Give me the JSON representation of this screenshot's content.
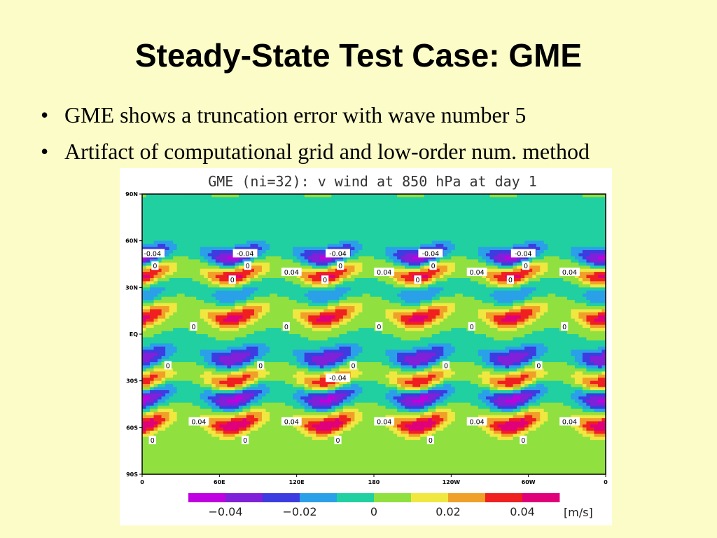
{
  "slide": {
    "title": "Steady-State Test Case: GME",
    "bullets": [
      "GME shows a truncation error with wave number 5",
      "Artifact of computational grid and low-order num. method"
    ]
  },
  "chart_data": {
    "type": "heatmap",
    "title": "GME (ni=32): v wind at 850 hPa at day 1",
    "x_ticks": [
      "0",
      "60E",
      "120E",
      "180",
      "120W",
      "60W",
      "0"
    ],
    "y_ticks": [
      "90N",
      "60N",
      "30N",
      "EQ",
      "30S",
      "60S",
      "90S"
    ],
    "xlim": [
      0,
      360
    ],
    "ylim": [
      -90,
      90
    ],
    "zonal_wave_number": 5,
    "colorbar": {
      "ticks": [
        "−0.04",
        "−0.02",
        "0",
        "0.02",
        "0.04"
      ],
      "unit": "[m/s]",
      "colors": [
        "#c000e0",
        "#8020d8",
        "#3c3ce0",
        "#2aa0e8",
        "#20d0a0",
        "#90e040",
        "#f0e840",
        "#f0a028",
        "#f02020",
        "#e0007a"
      ]
    },
    "bands": [
      {
        "lat": 52,
        "amplitude": -0.045
      },
      {
        "lat": 40,
        "amplitude": 0.045
      },
      {
        "lat": 28,
        "amplitude": -0.02
      },
      {
        "lat": 13,
        "amplitude": 0.045
      },
      {
        "lat": -13,
        "amplitude": -0.04
      },
      {
        "lat": -28,
        "amplitude": 0.04
      },
      {
        "lat": -39,
        "amplitude": -0.045
      },
      {
        "lat": -56,
        "amplitude": 0.05
      }
    ],
    "contour_labels": [
      {
        "lon": 8,
        "lat": 52,
        "text": "-0.04"
      },
      {
        "lon": 80,
        "lat": 52,
        "text": "-0.04"
      },
      {
        "lon": 152,
        "lat": 52,
        "text": "-0.04"
      },
      {
        "lon": 224,
        "lat": 52,
        "text": "-0.04"
      },
      {
        "lon": 296,
        "lat": 52,
        "text": "-0.04"
      },
      {
        "lon": 116,
        "lat": 40,
        "text": "0.04"
      },
      {
        "lon": 188,
        "lat": 40,
        "text": "0.04"
      },
      {
        "lon": 260,
        "lat": 40,
        "text": "0.04"
      },
      {
        "lon": 332,
        "lat": 40,
        "text": "0.04"
      },
      {
        "lon": 152,
        "lat": -28,
        "text": "-0.04"
      },
      {
        "lon": 44,
        "lat": -56,
        "text": "0.04"
      },
      {
        "lon": 116,
        "lat": -56,
        "text": "0.04"
      },
      {
        "lon": 188,
        "lat": -56,
        "text": "0.04"
      },
      {
        "lon": 260,
        "lat": -56,
        "text": "0.04"
      },
      {
        "lon": 332,
        "lat": -56,
        "text": "0.04"
      }
    ],
    "zero_labels": [
      {
        "lon": 10,
        "lat": 44,
        "text": "0"
      },
      {
        "lon": 82,
        "lat": 44,
        "text": "0"
      },
      {
        "lon": 154,
        "lat": 44,
        "text": "0"
      },
      {
        "lon": 226,
        "lat": 44,
        "text": "0"
      },
      {
        "lon": 298,
        "lat": 44,
        "text": "0"
      },
      {
        "lon": 70,
        "lat": 35,
        "text": "0"
      },
      {
        "lon": 142,
        "lat": 35,
        "text": "0"
      },
      {
        "lon": 214,
        "lat": 35,
        "text": "0"
      },
      {
        "lon": 286,
        "lat": 35,
        "text": "0"
      },
      {
        "lon": 40,
        "lat": 5,
        "text": "0"
      },
      {
        "lon": 112,
        "lat": 5,
        "text": "0"
      },
      {
        "lon": 184,
        "lat": 5,
        "text": "0"
      },
      {
        "lon": 256,
        "lat": 5,
        "text": "0"
      },
      {
        "lon": 328,
        "lat": 5,
        "text": "0"
      },
      {
        "lon": 20,
        "lat": -20,
        "text": "0"
      },
      {
        "lon": 92,
        "lat": -20,
        "text": "0"
      },
      {
        "lon": 164,
        "lat": -20,
        "text": "0"
      },
      {
        "lon": 236,
        "lat": -20,
        "text": "0"
      },
      {
        "lon": 308,
        "lat": -20,
        "text": "0"
      },
      {
        "lon": 8,
        "lat": -68,
        "text": "0"
      },
      {
        "lon": 80,
        "lat": -68,
        "text": "0"
      },
      {
        "lon": 152,
        "lat": -68,
        "text": "0"
      },
      {
        "lon": 224,
        "lat": -68,
        "text": "0"
      },
      {
        "lon": 296,
        "lat": -68,
        "text": "0"
      }
    ]
  }
}
